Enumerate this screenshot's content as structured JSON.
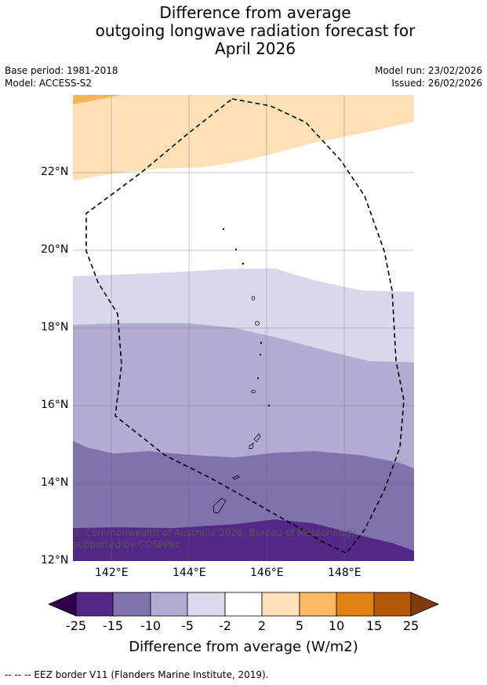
{
  "title": {
    "line1": "Difference from average",
    "line2": "outgoing longwave radiation forecast for",
    "line3": "April 2026"
  },
  "meta": {
    "base_period": "Base period: 1981-2018",
    "model": "Model: ACCESS-S2",
    "model_run": "Model run: 23/02/2026",
    "issued": "Issued: 26/02/2026"
  },
  "map": {
    "lat_labels": [
      "22°N",
      "20°N",
      "18°N",
      "16°N",
      "14°N",
      "12°N"
    ],
    "lon_labels": [
      "142°E",
      "144°E",
      "146°E",
      "148°E"
    ],
    "copyright": "© Commonwealth of Australia 2026, Bureau of Meteorology, supported by COSPPac",
    "colors": {
      "orange_dark": "#fbb35c",
      "orange_light": "#fde0b6",
      "white": "#ffffff",
      "purple_1": "#d8d8eb",
      "purple_2": "#b2abd2",
      "purple_3": "#8073ac",
      "purple_4": "#542788"
    }
  },
  "colorbar": {
    "tick_labels": [
      "-25",
      "-15",
      "-10",
      "-5",
      "-2",
      "2",
      "5",
      "10",
      "15",
      "25"
    ],
    "colors": [
      "#2d004b",
      "#542788",
      "#8073ac",
      "#b2abd2",
      "#d8daeb",
      "#ffffff",
      "#fee0b6",
      "#fdb863",
      "#e08214",
      "#b35806",
      "#7f3b08"
    ],
    "title": "Difference from average (W/m2)"
  },
  "footer": "--  --  -- EEZ border V11 (Flanders Marine Institute, 2019)."
}
